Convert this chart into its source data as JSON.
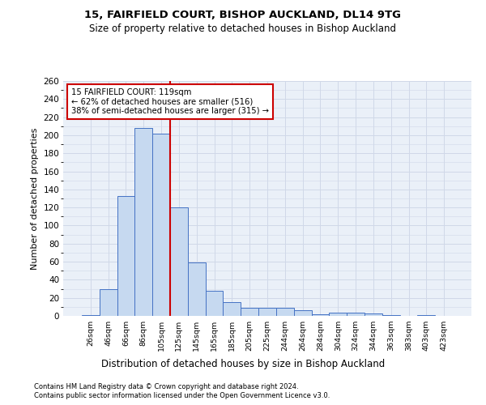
{
  "title_line1": "15, FAIRFIELD COURT, BISHOP AUCKLAND, DL14 9TG",
  "title_line2": "Size of property relative to detached houses in Bishop Auckland",
  "xlabel": "Distribution of detached houses by size in Bishop Auckland",
  "ylabel": "Number of detached properties",
  "footer_line1": "Contains HM Land Registry data © Crown copyright and database right 2024.",
  "footer_line2": "Contains public sector information licensed under the Open Government Licence v3.0.",
  "bar_labels": [
    "26sqm",
    "46sqm",
    "66sqm",
    "86sqm",
    "105sqm",
    "125sqm",
    "145sqm",
    "165sqm",
    "185sqm",
    "205sqm",
    "225sqm",
    "244sqm",
    "264sqm",
    "284sqm",
    "304sqm",
    "324sqm",
    "344sqm",
    "363sqm",
    "383sqm",
    "403sqm",
    "423sqm"
  ],
  "bar_values": [
    1,
    30,
    133,
    208,
    202,
    120,
    59,
    28,
    15,
    9,
    9,
    9,
    6,
    2,
    4,
    4,
    3,
    1,
    0,
    1,
    0
  ],
  "bar_color": "#c6d9f0",
  "bar_edge_color": "#4472c4",
  "property_line_x": 4.5,
  "annotation_text_line1": "15 FAIRFIELD COURT: 119sqm",
  "annotation_text_line2": "← 62% of detached houses are smaller (516)",
  "annotation_text_line3": "38% of semi-detached houses are larger (315) →",
  "annotation_box_color": "#ffffff",
  "annotation_border_color": "#cc0000",
  "vline_color": "#cc0000",
  "ylim": [
    0,
    260
  ],
  "yticks": [
    0,
    20,
    40,
    60,
    80,
    100,
    120,
    140,
    160,
    180,
    200,
    220,
    240,
    260
  ],
  "grid_color": "#d0d8e8",
  "background_color": "#eaf0f8"
}
